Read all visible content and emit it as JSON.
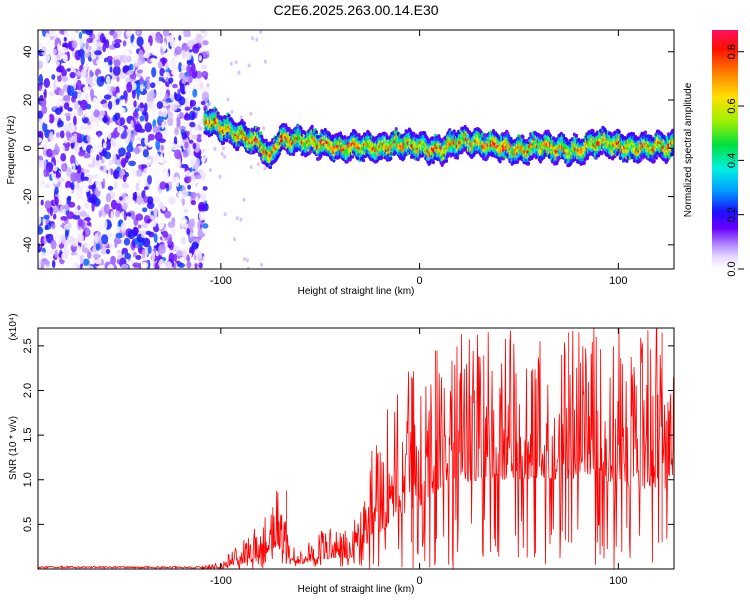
{
  "title": "C2E6.2025.263.00.14.E30",
  "chart_data": [
    {
      "type": "heatmap",
      "name": "spectrogram",
      "title": "C2E6.2025.263.00.14.E30",
      "xlabel": "Height of straight line (km)",
      "ylabel": "Frequency (Hz)",
      "xlim": [
        -192,
        128
      ],
      "ylim": [
        -50,
        49
      ],
      "xticks": [
        -100,
        0,
        100
      ],
      "xtick_labels": [
        "-100",
        "0",
        "100"
      ],
      "yticks": [
        -40,
        -20,
        0,
        20,
        40
      ],
      "ytick_labels": [
        "-40",
        "-20",
        "0",
        "20",
        "40"
      ],
      "noise_region_x": [
        -192,
        -107
      ],
      "ridge": {
        "x": [
          -108,
          -100,
          -90,
          -80,
          -75,
          -70,
          -60,
          -50,
          -40,
          -30,
          -20,
          -10,
          0,
          10,
          20,
          30,
          40,
          50,
          60,
          70,
          80,
          90,
          100,
          110,
          120,
          128
        ],
        "y": [
          12,
          9,
          5,
          2,
          -4,
          4,
          3,
          2,
          0,
          1,
          0,
          2,
          1,
          -1,
          3,
          2,
          1,
          -1,
          1,
          0,
          -1,
          3,
          1,
          0,
          1,
          1
        ]
      },
      "colorbar": {
        "label": "Normalized spectral amplitude",
        "range": [
          0,
          0.88
        ],
        "ticks": [
          0.0,
          0.2,
          0.4,
          0.6,
          0.8
        ],
        "tick_labels": [
          "0.0",
          "0.2",
          "0.4",
          "0.6",
          "0.8"
        ]
      }
    },
    {
      "type": "line",
      "name": "snr",
      "xlabel": "Height of straight line (km)",
      "ylabel": "SNR (10 * v/v)",
      "y_multiplier": "(x10⁴)",
      "color": "#ff0000",
      "xlim": [
        -192,
        128
      ],
      "ylim": [
        0,
        2.7
      ],
      "xticks": [
        -100,
        0,
        100
      ],
      "xtick_labels": [
        "-100",
        "0",
        "100"
      ],
      "yticks": [
        0.5,
        1.0,
        1.5,
        2.0,
        2.5
      ],
      "ytick_labels": [
        "0.5",
        "1.0",
        "1.5",
        "2.0",
        "2.5"
      ],
      "envelope": {
        "x": [
          -192,
          -110,
          -100,
          -90,
          -80,
          -76,
          -72,
          -68,
          -65,
          -60,
          -55,
          -50,
          -45,
          -40,
          -35,
          -30,
          -25,
          -20,
          -10,
          0,
          10,
          20,
          30,
          40,
          50,
          60,
          70,
          80,
          90,
          100,
          110,
          120,
          128
        ],
        "base": [
          0.0,
          0.0,
          0.02,
          0.05,
          0.1,
          0.2,
          0.25,
          0.15,
          0.1,
          0.05,
          0.08,
          0.1,
          0.12,
          0.12,
          0.1,
          0.2,
          0.3,
          0.4,
          0.6,
          0.7,
          0.9,
          0.95,
          1.0,
          1.0,
          1.0,
          1.0,
          1.0,
          1.0,
          1.0,
          0.95,
          0.9,
          0.9,
          0.9
        ],
        "peak": [
          0.03,
          0.03,
          0.08,
          0.3,
          0.5,
          0.7,
          0.85,
          0.6,
          0.3,
          0.2,
          0.3,
          0.4,
          0.45,
          0.45,
          0.4,
          0.9,
          1.3,
          1.7,
          2.0,
          2.2,
          2.4,
          2.5,
          2.55,
          2.6,
          2.6,
          2.6,
          2.6,
          2.6,
          2.6,
          2.55,
          2.5,
          2.6,
          2.2
        ],
        "notable_peaks": [
          {
            "x": -67,
            "y": 0.88
          },
          {
            "x": -4,
            "y": 2.15
          },
          {
            "x": 8,
            "y": 2.45
          },
          {
            "x": 75,
            "y": 2.65
          },
          {
            "x": 122,
            "y": 2.65
          }
        ]
      }
    }
  ]
}
